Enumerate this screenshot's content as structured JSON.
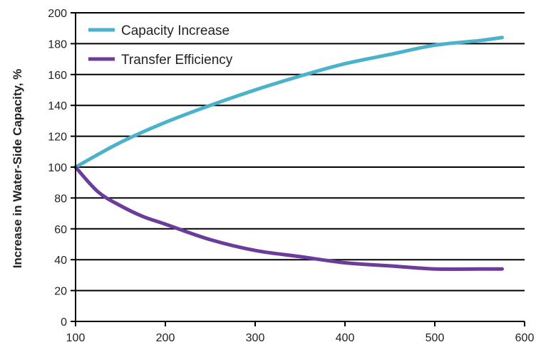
{
  "chart_data": {
    "type": "line",
    "title": "",
    "xlabel": "",
    "ylabel": "Increase in Water-Side Capacity, %",
    "xlim": [
      100,
      600
    ],
    "ylim": [
      0,
      200
    ],
    "xticks": [
      100,
      200,
      300,
      400,
      500,
      600
    ],
    "yticks": [
      0,
      20,
      40,
      60,
      80,
      100,
      120,
      140,
      160,
      180,
      200
    ],
    "grid": "horizontal",
    "legend_position": "top-left",
    "series": [
      {
        "name": "Capacity Increase",
        "color": "#4bb2cc",
        "x": [
          100,
          150,
          200,
          250,
          300,
          350,
          400,
          450,
          500,
          550,
          575
        ],
        "y": [
          100,
          116,
          129,
          140,
          150,
          159,
          167,
          173,
          179,
          182,
          184
        ]
      },
      {
        "name": "Transfer Efficiency",
        "color": "#6b3c99",
        "x": [
          100,
          125,
          150,
          175,
          200,
          250,
          300,
          350,
          400,
          450,
          500,
          550,
          575
        ],
        "y": [
          100,
          84,
          75,
          68,
          63,
          53,
          46,
          42,
          38,
          36,
          34,
          34,
          34
        ]
      }
    ]
  }
}
